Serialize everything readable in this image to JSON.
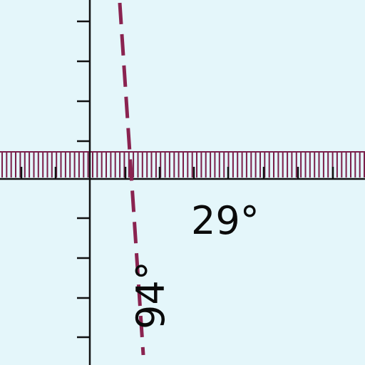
{
  "colors": {
    "background": "#e4f6fa",
    "axis": "#111111",
    "band": "#7a1f4a",
    "dashed_line": "#8a2350"
  },
  "diagram": {
    "horizontal_band_angle_label": "29°",
    "dashed_line_angle_label": "94°",
    "dashed_line_style": "dashed"
  }
}
